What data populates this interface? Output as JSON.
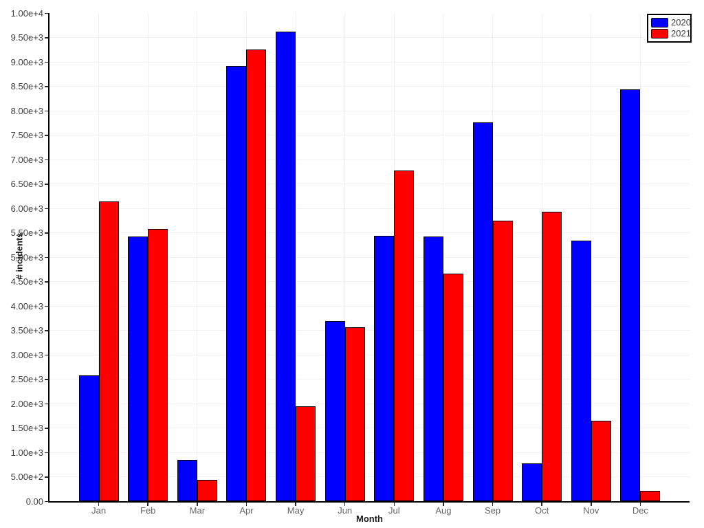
{
  "chart_data": {
    "type": "bar",
    "title": "",
    "xlabel": "Month",
    "ylabel": "# incidents",
    "categories": [
      "Jan",
      "Feb",
      "Mar",
      "Apr",
      "May",
      "Jun",
      "Jul",
      "Aug",
      "Sep",
      "Oct",
      "Nov",
      "Dec"
    ],
    "series": [
      {
        "name": "2020",
        "color": "#0000ff",
        "values": [
          2580,
          5420,
          845,
          8910,
          9620,
          3690,
          5440,
          5420,
          7760,
          770,
          5340,
          8440
        ]
      },
      {
        "name": "2021",
        "color": "#ff0000",
        "values": [
          6140,
          5580,
          430,
          9250,
          1940,
          3560,
          6770,
          4660,
          5750,
          5930,
          1650,
          215
        ]
      }
    ],
    "ylim": [
      0,
      10000
    ],
    "ytick_step": 500,
    "ytick_labels": [
      "0.00",
      "5.00e+2",
      "1.00e+3",
      "1.50e+3",
      "2.00e+3",
      "2.50e+3",
      "3.00e+3",
      "3.50e+3",
      "4.00e+3",
      "4.50e+3",
      "5.00e+3",
      "5.50e+3",
      "6.00e+3",
      "6.50e+3",
      "7.00e+3",
      "7.50e+3",
      "8.00e+3",
      "8.50e+3",
      "9.00e+3",
      "9.50e+3",
      "1.00e+4"
    ],
    "grid": true,
    "grid_color": "#f0f0f0",
    "axis_color": "#000000",
    "legend_position": "top-right",
    "legend_labels": [
      "2020",
      "2021"
    ]
  }
}
